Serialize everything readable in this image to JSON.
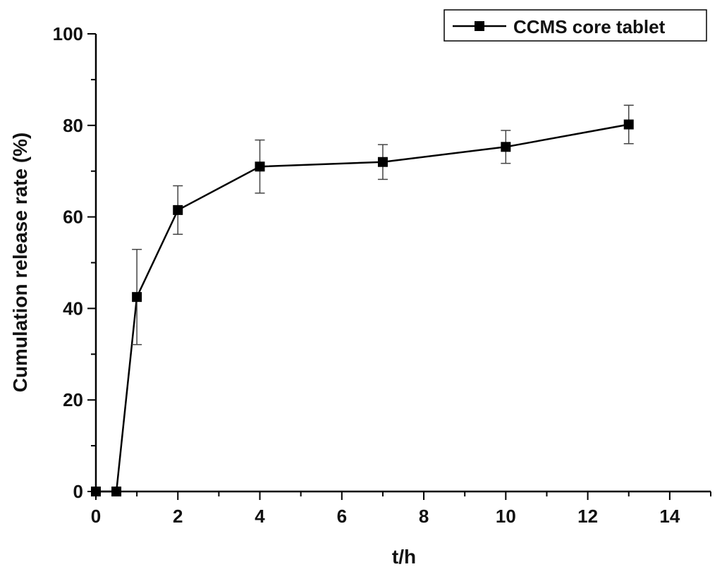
{
  "chart_data": {
    "type": "line",
    "title": "",
    "xlabel": "t/h",
    "ylabel": "Cumulation release rate (%)",
    "xlim": [
      0,
      15
    ],
    "ylim": [
      0,
      100
    ],
    "x_ticks": [
      0,
      2,
      4,
      6,
      8,
      10,
      12,
      14
    ],
    "y_ticks": [
      0,
      20,
      40,
      60,
      80,
      100
    ],
    "grid": false,
    "legend_position": "top-right",
    "marker": "square",
    "series": [
      {
        "name": "CCMS core tablet",
        "color": "#000000",
        "x": [
          0,
          0.5,
          1,
          2,
          4,
          7,
          10,
          13
        ],
        "y": [
          0,
          0,
          42.5,
          61.5,
          71,
          72,
          75.3,
          80.2
        ],
        "error": [
          0,
          0,
          10.4,
          5.3,
          5.8,
          3.8,
          3.6,
          4.2
        ]
      }
    ]
  }
}
